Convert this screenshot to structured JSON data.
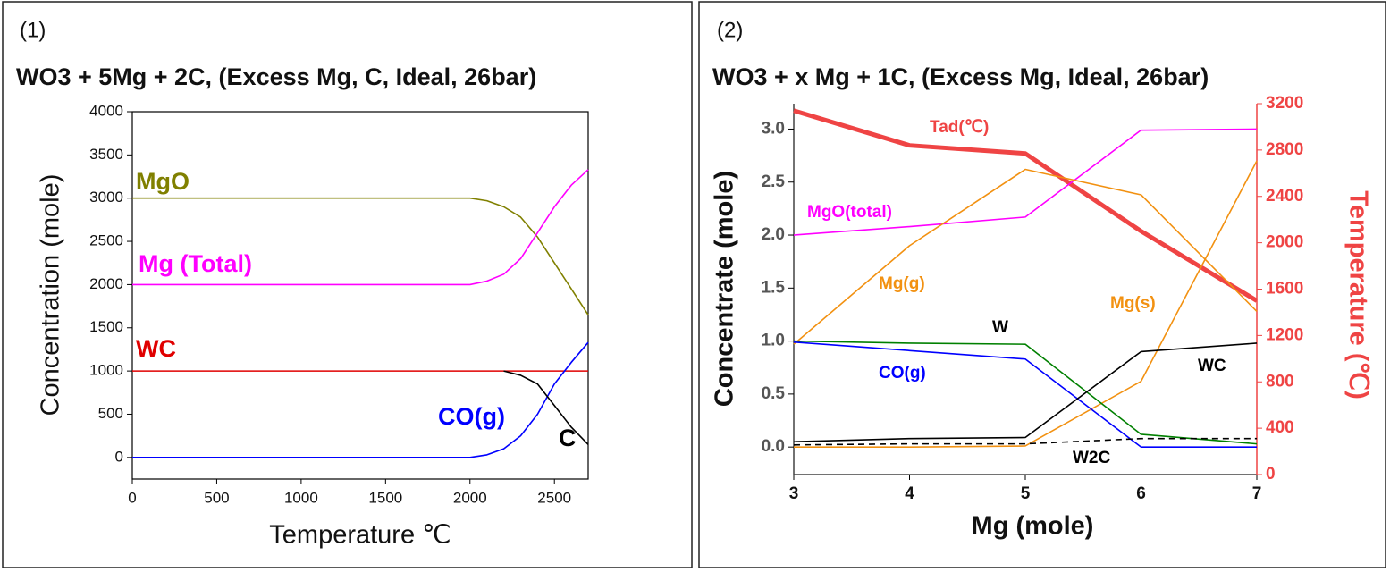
{
  "chart_data": [
    {
      "type": "line",
      "panel_label": "(1)",
      "title": "WO3 + 5Mg + 2C, (Excess Mg, C, Ideal, 26bar)",
      "x_label": "Temperature ℃",
      "y_label": "Concentration (mole)",
      "x": [
        0,
        500,
        1000,
        1500,
        2000,
        2100,
        2200,
        2300,
        2400,
        2500,
        2600,
        2700
      ],
      "xlim": [
        0,
        2700
      ],
      "xticks": [
        0,
        500,
        1000,
        1500,
        2000,
        2500
      ],
      "ylim": [
        -250,
        4000
      ],
      "yticks": [
        0,
        500,
        1000,
        1500,
        2000,
        2500,
        3000,
        3500,
        4000
      ],
      "series": [
        {
          "name": "MgO",
          "color": "#808000",
          "values": [
            3000,
            3000,
            3000,
            3000,
            3000,
            2970,
            2900,
            2780,
            2550,
            2250,
            1950,
            1650
          ]
        },
        {
          "name": "Mg (Total)",
          "color": "#ff00ff",
          "values": [
            2000,
            2000,
            2000,
            2000,
            2000,
            2040,
            2120,
            2300,
            2600,
            2900,
            3150,
            3330
          ]
        },
        {
          "name": "WC",
          "color": "#e00000",
          "values": [
            1000,
            1000,
            1000,
            1000,
            1000,
            1000,
            1000,
            1000,
            1000,
            1000,
            1000,
            1000
          ]
        },
        {
          "name": "CO(g)",
          "color": "#0000ff",
          "values": [
            0,
            0,
            0,
            0,
            0,
            30,
            100,
            250,
            500,
            850,
            1100,
            1330
          ]
        },
        {
          "name": "C",
          "color": "#000000",
          "values": [
            null,
            null,
            null,
            null,
            null,
            null,
            1000,
            950,
            850,
            600,
            350,
            150
          ]
        }
      ]
    },
    {
      "type": "line",
      "panel_label": "(2)",
      "title": "WO3 + x Mg + 1C, (Excess Mg, Ideal, 26bar)",
      "x_label": "Mg (mole)",
      "y_label": "Concentrate (mole)",
      "y2_label": "Temperature (℃)",
      "y2_color": "#ef4444",
      "x": [
        3,
        4,
        5,
        6,
        7
      ],
      "xlim": [
        3,
        7
      ],
      "xticks": [
        3,
        4,
        5,
        6,
        7
      ],
      "ylim": [
        -0.26,
        3.24
      ],
      "yticks": [
        {
          "value": 0,
          "label": "0.0"
        },
        0.5,
        {
          "value": 1,
          "label": "1.0"
        },
        1.5,
        {
          "value": 2,
          "label": "2.0"
        },
        2.5,
        {
          "value": 3,
          "label": "3.0"
        }
      ],
      "y2lim": [
        0,
        3200
      ],
      "y2ticks": [
        0,
        400,
        800,
        1200,
        1600,
        2000,
        2400,
        2800,
        3200
      ],
      "series": [
        {
          "name": "Tad(℃)",
          "color": "#ef4444",
          "axis": "y2",
          "width": 5,
          "values": [
            3140,
            2840,
            2770,
            2100,
            1500
          ]
        },
        {
          "name": "MgO(total)",
          "color": "#ff00ff",
          "values": [
            2.0,
            2.08,
            2.17,
            2.99,
            3.0
          ]
        },
        {
          "name": "Mg(g)",
          "color": "#f29111",
          "values": [
            0.97,
            1.9,
            2.62,
            2.38,
            1.28
          ]
        },
        {
          "name": "Mg(s)",
          "color": "#f29111",
          "values": [
            0,
            0,
            0.01,
            0.62,
            2.7
          ]
        },
        {
          "name": "W",
          "color": "#008000",
          "label_color": "#000000",
          "values": [
            1.0,
            0.98,
            0.97,
            0.12,
            0.03
          ]
        },
        {
          "name": "CO(g)",
          "color": "#0000ff",
          "values": [
            0.99,
            0.91,
            0.83,
            0.0,
            0.0
          ]
        },
        {
          "name": "WC",
          "color": "#000000",
          "values": [
            0.05,
            0.08,
            0.09,
            0.9,
            0.98
          ]
        },
        {
          "name": "W2C",
          "color": "#000000",
          "dash": true,
          "values": [
            0.02,
            0.03,
            0.03,
            0.08,
            0.08
          ]
        }
      ]
    }
  ]
}
